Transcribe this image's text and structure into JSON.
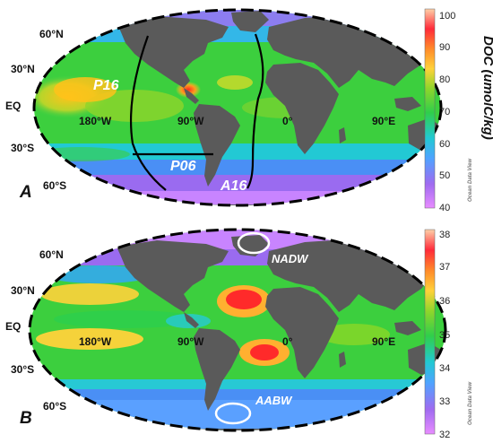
{
  "panel_a": {
    "label": "A",
    "lat_labels": [
      "60°N",
      "30°N",
      "EQ",
      "30°S",
      "60°S"
    ],
    "lon_labels": [
      "180°W",
      "90°W",
      "0°",
      "90°E"
    ],
    "sections": [
      "P16",
      "P06",
      "A16"
    ],
    "colorbar": {
      "title": "DOC (umolC/kg)",
      "ticks": [
        "100",
        "90",
        "80",
        "70",
        "60",
        "50",
        "40"
      ],
      "range": [
        40,
        100
      ],
      "colors": [
        "#d98cff",
        "#9b6bf0",
        "#4fa3ff",
        "#27c9d6",
        "#2fcf4a",
        "#7ad62b",
        "#e6e02a",
        "#ffb030",
        "#ff6a2a",
        "#ff2a3a",
        "#ffc9a3"
      ]
    },
    "watermark": "Ocean Data View"
  },
  "panel_b": {
    "label": "B",
    "lat_labels": [
      "60°N",
      "30°N",
      "EQ",
      "30°S",
      "60°S"
    ],
    "lon_labels": [
      "180°W",
      "90°W",
      "0°",
      "90°E"
    ],
    "water_masses": [
      "NADW",
      "AABW"
    ],
    "colorbar": {
      "ticks": [
        "38",
        "37",
        "36",
        "35",
        "34",
        "33",
        "32"
      ],
      "range": [
        32,
        38
      ],
      "colors": [
        "#d98cff",
        "#9b6bf0",
        "#4fa3ff",
        "#27c9d6",
        "#2fcf4a",
        "#7ad62b",
        "#e6e02a",
        "#ffb030",
        "#ff6a2a",
        "#ff2a3a",
        "#ffc9a3"
      ]
    },
    "watermark": "Ocean Data View"
  }
}
